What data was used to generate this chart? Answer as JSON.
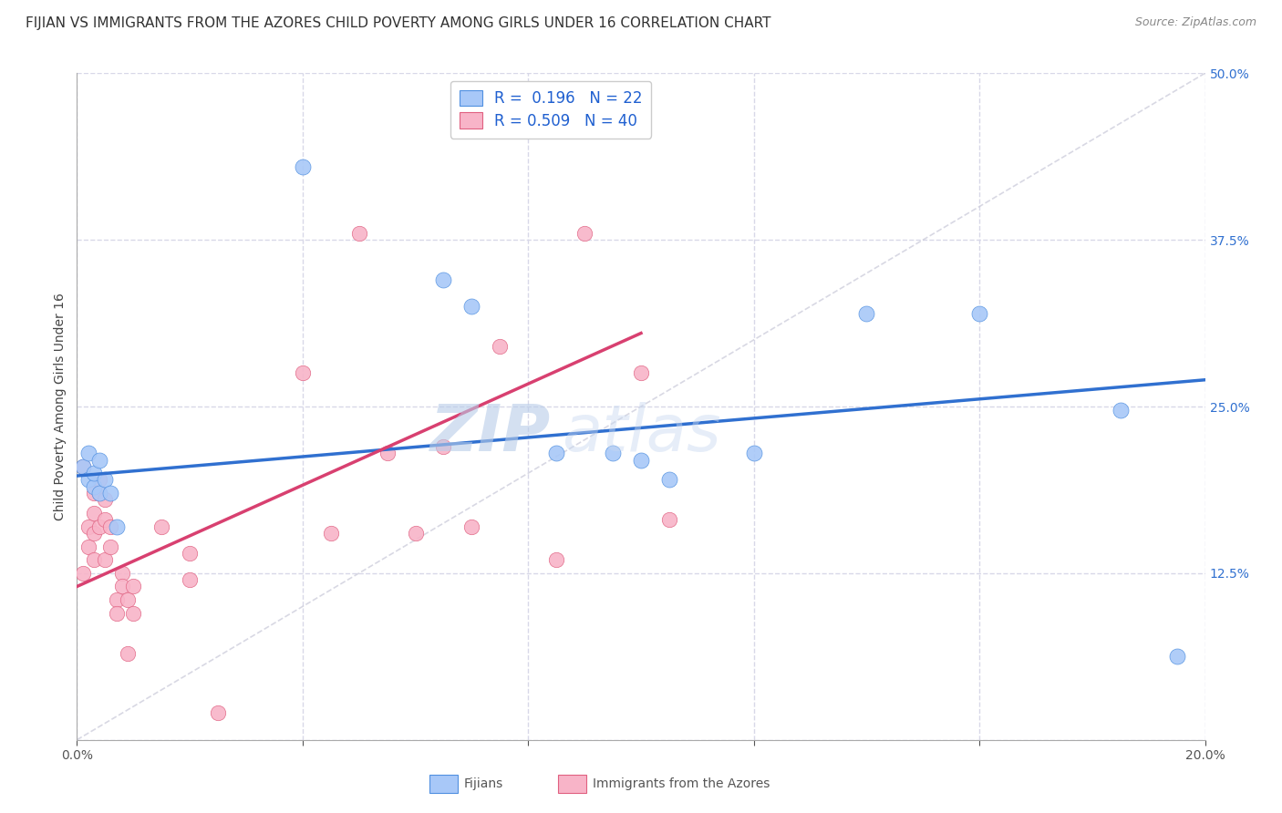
{
  "title": "FIJIAN VS IMMIGRANTS FROM THE AZORES CHILD POVERTY AMONG GIRLS UNDER 16 CORRELATION CHART",
  "source": "Source: ZipAtlas.com",
  "ylabel": "Child Poverty Among Girls Under 16",
  "xlim": [
    0.0,
    0.2
  ],
  "ylim": [
    0.0,
    0.5
  ],
  "xticks": [
    0.0,
    0.04,
    0.08,
    0.12,
    0.16,
    0.2
  ],
  "yticks": [
    0.0,
    0.125,
    0.25,
    0.375,
    0.5
  ],
  "fijian_color": "#a8c8f8",
  "azores_color": "#f8b4c8",
  "fijian_edge_color": "#5090e0",
  "azores_edge_color": "#e06080",
  "fijian_line_color": "#3070d0",
  "azores_line_color": "#d84070",
  "diagonal_color": "#c8c8d8",
  "R_fijian": 0.196,
  "N_fijian": 22,
  "R_azores": 0.509,
  "N_azores": 40,
  "fijian_line_x0": 0.0,
  "fijian_line_y0": 0.198,
  "fijian_line_x1": 0.2,
  "fijian_line_y1": 0.27,
  "azores_line_x0": 0.0,
  "azores_line_y0": 0.115,
  "azores_line_x1": 0.1,
  "azores_line_y1": 0.305,
  "fijian_scatter_x": [
    0.001,
    0.002,
    0.002,
    0.003,
    0.003,
    0.004,
    0.004,
    0.005,
    0.006,
    0.007,
    0.04,
    0.065,
    0.07,
    0.085,
    0.095,
    0.1,
    0.105,
    0.12,
    0.14,
    0.16,
    0.185,
    0.195
  ],
  "fijian_scatter_y": [
    0.205,
    0.195,
    0.215,
    0.19,
    0.2,
    0.185,
    0.21,
    0.195,
    0.185,
    0.16,
    0.43,
    0.345,
    0.325,
    0.215,
    0.215,
    0.21,
    0.195,
    0.215,
    0.32,
    0.32,
    0.247,
    0.063
  ],
  "azores_scatter_x": [
    0.001,
    0.001,
    0.002,
    0.002,
    0.003,
    0.003,
    0.003,
    0.003,
    0.004,
    0.004,
    0.004,
    0.005,
    0.005,
    0.005,
    0.006,
    0.006,
    0.007,
    0.007,
    0.008,
    0.008,
    0.009,
    0.009,
    0.01,
    0.01,
    0.015,
    0.02,
    0.02,
    0.025,
    0.04,
    0.045,
    0.05,
    0.055,
    0.06,
    0.065,
    0.07,
    0.075,
    0.085,
    0.09,
    0.1,
    0.105
  ],
  "azores_scatter_y": [
    0.205,
    0.125,
    0.16,
    0.145,
    0.185,
    0.17,
    0.155,
    0.135,
    0.195,
    0.185,
    0.16,
    0.18,
    0.165,
    0.135,
    0.16,
    0.145,
    0.105,
    0.095,
    0.125,
    0.115,
    0.105,
    0.065,
    0.115,
    0.095,
    0.16,
    0.14,
    0.12,
    0.02,
    0.275,
    0.155,
    0.38,
    0.215,
    0.155,
    0.22,
    0.16,
    0.295,
    0.135,
    0.38,
    0.275,
    0.165
  ],
  "watermark_zip": "ZIP",
  "watermark_atlas": "atlas",
  "background_color": "#ffffff",
  "grid_color": "#d8d8e8",
  "title_fontsize": 11,
  "axis_label_fontsize": 10,
  "tick_fontsize": 10,
  "legend_fontsize": 12,
  "source_fontsize": 9
}
